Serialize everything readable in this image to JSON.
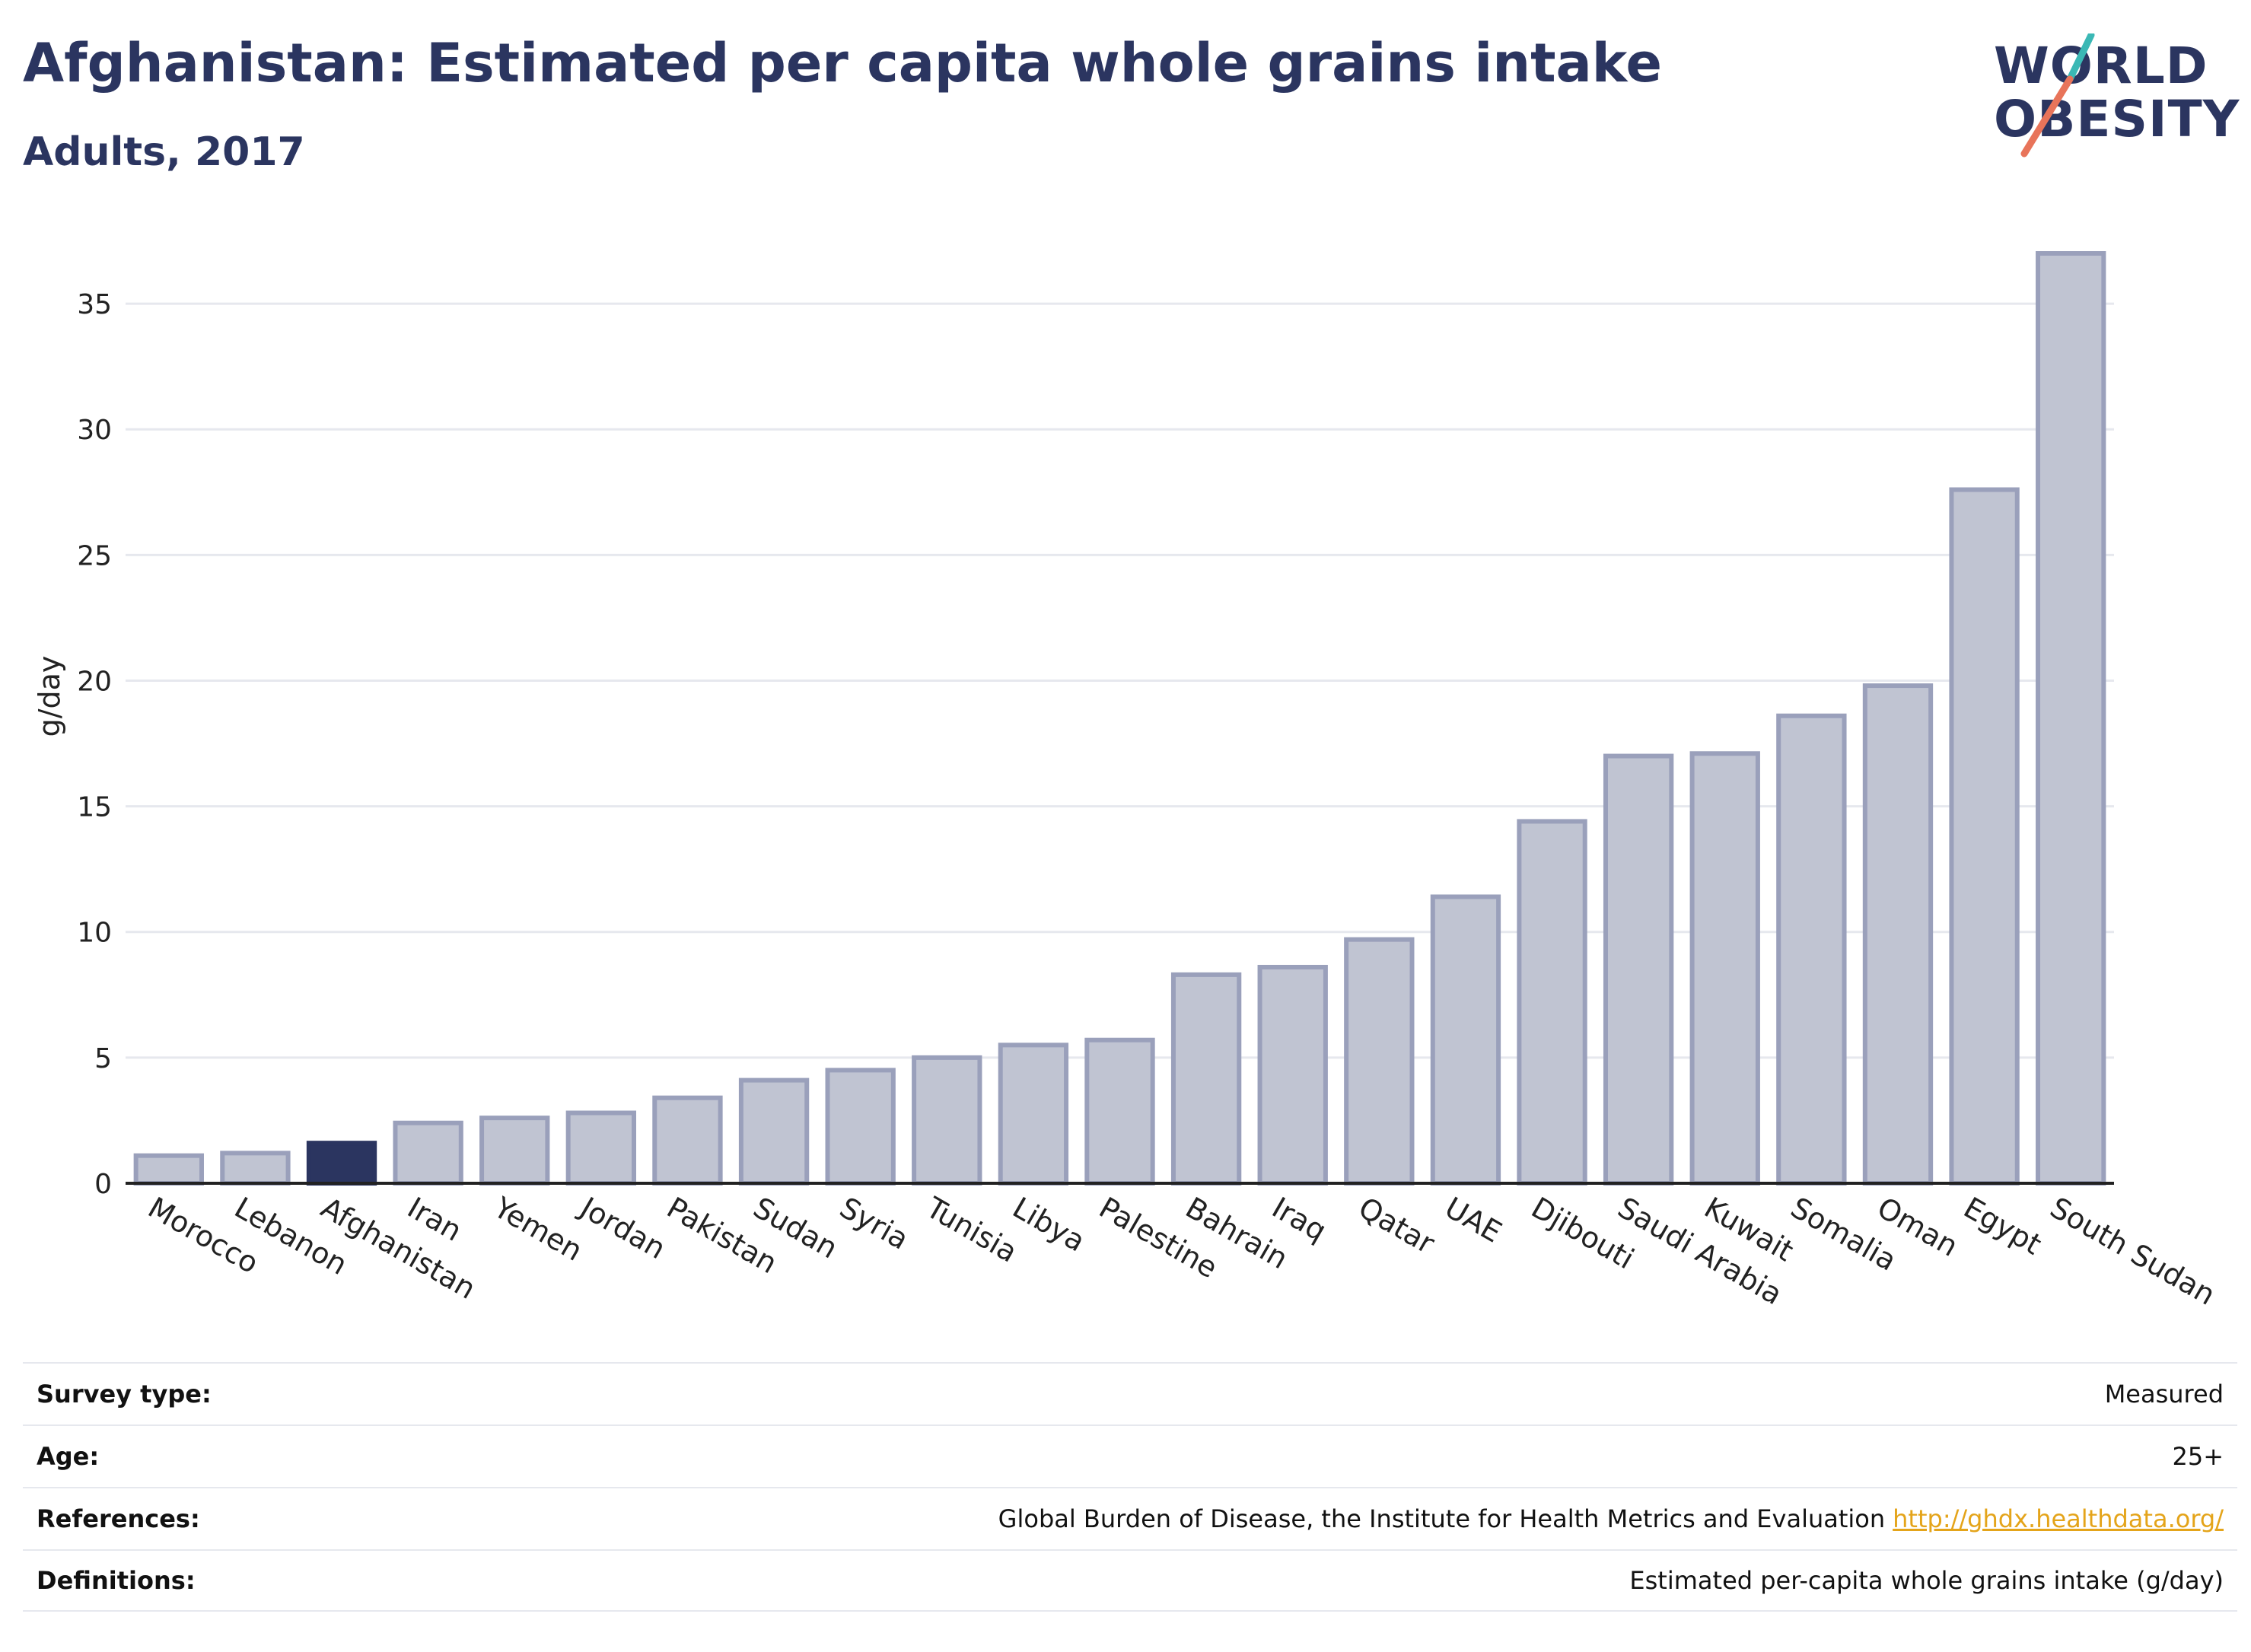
{
  "header": {
    "title": "Afghanistan: Estimated per capita whole grains intake",
    "subtitle": "Adults, 2017"
  },
  "logo": {
    "line1": "WORLD",
    "line2": "OBESITY",
    "accent_teal": "#3bb8b5",
    "accent_coral": "#e8745a"
  },
  "colors": {
    "bar_default": "#c0c4d2",
    "bar_border": "#9aa0bb",
    "bar_highlight": "#2b3560",
    "grid": "#e6e8ee",
    "axis": "#222222"
  },
  "chart_data": {
    "type": "bar",
    "title": "Afghanistan: Estimated per capita whole grains intake",
    "subtitle": "Adults, 2017",
    "xlabel": "",
    "ylabel": "g/day",
    "ylim": [
      0,
      38
    ],
    "yticks": [
      0,
      5,
      10,
      15,
      20,
      25,
      30,
      35
    ],
    "grid": true,
    "highlight": "Afghanistan",
    "categories": [
      "Morocco",
      "Lebanon",
      "Afghanistan",
      "Iran",
      "Yemen",
      "Jordan",
      "Pakistan",
      "Sudan",
      "Syria",
      "Tunisia",
      "Libya",
      "Palestine",
      "Bahrain",
      "Iraq",
      "Qatar",
      "UAE",
      "Djibouti",
      "Saudi Arabia",
      "Kuwait",
      "Somalia",
      "Oman",
      "Egypt",
      "South Sudan"
    ],
    "values": [
      1.1,
      1.2,
      1.6,
      2.4,
      2.6,
      2.8,
      3.4,
      4.1,
      4.5,
      5.0,
      5.5,
      5.7,
      8.3,
      8.6,
      9.7,
      11.4,
      14.4,
      17.0,
      17.1,
      18.6,
      19.8,
      27.6,
      37.0
    ]
  },
  "meta": {
    "survey_type_label": "Survey type:",
    "survey_type_value": "Measured",
    "age_label": "Age:",
    "age_value": "25+",
    "references_label": "References:",
    "references_value": "Global Burden of Disease, the Institute for Health Metrics and Evaluation",
    "references_link": "http://ghdx.healthdata.org/",
    "definitions_label": "Definitions:",
    "definitions_value": "Estimated per-capita whole grains intake (g/day)"
  }
}
